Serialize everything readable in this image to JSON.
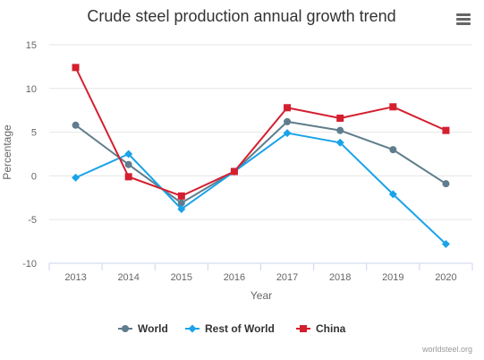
{
  "chart_data": {
    "type": "line",
    "title": "Crude steel production annual growth trend",
    "xlabel": "Year",
    "ylabel": "Percentage",
    "x": [
      "2013",
      "2014",
      "2015",
      "2016",
      "2017",
      "2018",
      "2019",
      "2020"
    ],
    "ylim": [
      -10,
      15
    ],
    "yticks": [
      -10,
      -5,
      0,
      5,
      10,
      15
    ],
    "grid": true,
    "legend_position": "bottom-center",
    "series": [
      {
        "name": "World",
        "color": "#5f7d8c",
        "marker": "circle",
        "values": [
          5.8,
          1.3,
          -3.1,
          0.5,
          6.2,
          5.2,
          3.0,
          -0.9
        ]
      },
      {
        "name": "Rest of World",
        "color": "#1aa3e8",
        "marker": "diamond",
        "values": [
          -0.2,
          2.5,
          -3.8,
          0.5,
          4.9,
          3.8,
          -2.1,
          -7.8
        ]
      },
      {
        "name": "China",
        "color": "#d41f2f",
        "marker": "square",
        "values": [
          12.4,
          -0.1,
          -2.3,
          0.5,
          7.8,
          6.6,
          7.9,
          5.2
        ]
      }
    ]
  },
  "toolbar": {
    "menu_icon": "hamburger-menu-icon"
  },
  "credit": "worldsteel.org"
}
